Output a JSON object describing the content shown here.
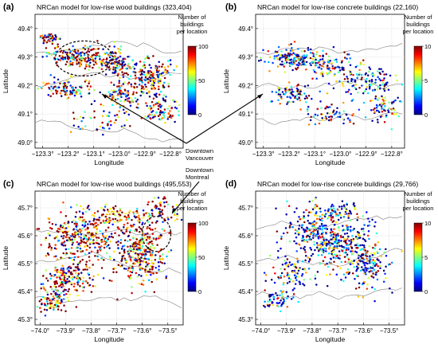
{
  "figure": {
    "annotations": {
      "vancouver": [
        "Downtown",
        "Vancouver"
      ],
      "montreal": [
        "Downtown",
        "Montreal"
      ]
    }
  },
  "chart_data": [
    {
      "type": "scatter",
      "panel": "(a)",
      "title": "NRCan model for low-rise wood buildings (323,404)",
      "xlabel": "Longitude",
      "ylabel": "Latitude",
      "xlim": [
        -123.33,
        -122.75
      ],
      "ylim": [
        48.98,
        49.45
      ],
      "x_ticks": [
        "−123.3°",
        "−123.2°",
        "−123.1°",
        "−123.0°",
        "−122.9°",
        "−122.8°"
      ],
      "x_tick_values": [
        -123.3,
        -123.2,
        -123.1,
        -123.0,
        -122.9,
        -122.8
      ],
      "y_ticks": [
        "49.0°",
        "49.1°",
        "49.2°",
        "49.3°",
        "49.4°"
      ],
      "y_tick_values": [
        49.0,
        49.1,
        49.2,
        49.3,
        49.4
      ],
      "colorbar": {
        "title": [
          "Number of",
          "buildings",
          "per location"
        ],
        "ticks": [
          "100",
          "50",
          "0"
        ],
        "range": [
          0,
          100
        ]
      },
      "count": 323404
    },
    {
      "type": "scatter",
      "panel": "(b)",
      "title": "NRCan model for low-rise concrete buildings (22,160)",
      "xlabel": "Longitude",
      "ylabel": "Latitude",
      "xlim": [
        -123.33,
        -122.75
      ],
      "ylim": [
        48.98,
        49.45
      ],
      "x_ticks": [
        "−123.3°",
        "−123.2°",
        "−123.1°",
        "−123.0°",
        "−122.9°",
        "−122.8°"
      ],
      "x_tick_values": [
        -123.3,
        -123.2,
        -123.1,
        -123.0,
        -122.9,
        -122.8
      ],
      "y_ticks": [
        "49.0°",
        "49.1°",
        "49.2°",
        "49.3°",
        "49.4°"
      ],
      "y_tick_values": [
        49.0,
        49.1,
        49.2,
        49.3,
        49.4
      ],
      "colorbar": {
        "title": [
          "Number of",
          "buildings",
          "per location"
        ],
        "ticks": [
          "10",
          "5",
          "0"
        ],
        "range": [
          0,
          10
        ]
      },
      "count": 22160
    },
    {
      "type": "scatter",
      "panel": "(c)",
      "title": "NRCan model for low-rise wood buildings (495,553)",
      "xlabel": "Longitude",
      "ylabel": "Latitude",
      "xlim": [
        -74.02,
        -73.44
      ],
      "ylim": [
        45.28,
        45.76
      ],
      "x_ticks": [
        "−74.0°",
        "−73.9°",
        "−73.8°",
        "−73.7°",
        "−73.6°",
        "−73.5°"
      ],
      "x_tick_values": [
        -74.0,
        -73.9,
        -73.8,
        -73.7,
        -73.6,
        -73.5
      ],
      "y_ticks": [
        "45.3°",
        "45.4°",
        "45.5°",
        "45.6°",
        "45.7°"
      ],
      "y_tick_values": [
        45.3,
        45.4,
        45.5,
        45.6,
        45.7
      ],
      "colorbar": {
        "title": [
          "Number of",
          "buildings",
          "per location"
        ],
        "ticks": [
          "100",
          "50",
          "0"
        ],
        "range": [
          0,
          100
        ]
      },
      "count": 495553
    },
    {
      "type": "scatter",
      "panel": "(d)",
      "title": "NRCan model for low-rise concrete buildings (29,766)",
      "xlabel": "Longitude",
      "ylabel": "Latitude",
      "xlim": [
        -74.02,
        -73.44
      ],
      "ylim": [
        45.28,
        45.76
      ],
      "x_ticks": [
        "−74.0°",
        "−73.9°",
        "−73.8°",
        "−73.7°",
        "−73.6°",
        "−73.5°"
      ],
      "x_tick_values": [
        -74.0,
        -73.9,
        -73.8,
        -73.7,
        -73.6,
        -73.5
      ],
      "y_ticks": [
        "45.3°",
        "45.4°",
        "45.5°",
        "45.6°",
        "45.7°"
      ],
      "y_tick_values": [
        45.3,
        45.4,
        45.5,
        45.6,
        45.7
      ],
      "colorbar": {
        "title": [
          "Number of",
          "buildings",
          "per location"
        ],
        "ticks": [
          "10",
          "5",
          "0"
        ],
        "range": [
          0,
          10
        ]
      },
      "count": 29766
    }
  ]
}
